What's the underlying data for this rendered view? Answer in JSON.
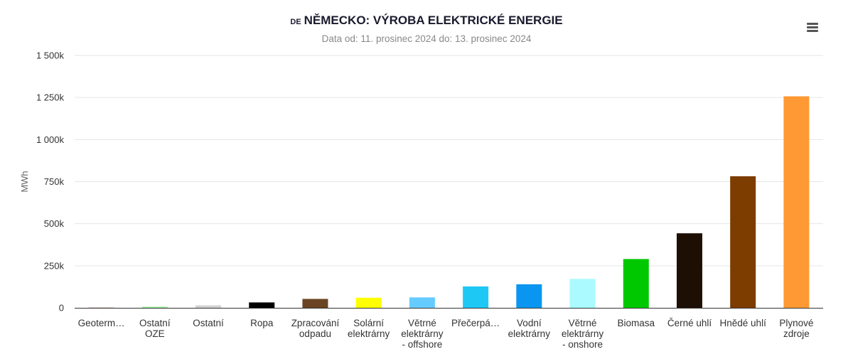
{
  "header": {
    "country_code": "DE",
    "title": "NĚMECKO: VÝROBA ELEKTRICKÉ ENERGIE",
    "subtitle": "Data od: 11. prosinec 2024 do: 13. prosinec 2024"
  },
  "menu": {
    "icon": "hamburger-menu-icon"
  },
  "chart_data": {
    "type": "bar",
    "title": "NĚMECKO: VÝROBA ELEKTRICKÉ ENERGIE",
    "subtitle": "Data od: 11. prosinec 2024 do: 13. prosinec 2024",
    "xlabel": "",
    "ylabel": "MWh",
    "ylim": [
      0,
      1500000
    ],
    "yticks": [
      0,
      250000,
      500000,
      750000,
      1000000,
      1250000,
      1500000
    ],
    "ytick_labels": [
      "0",
      "250k",
      "500k",
      "750k",
      "1 000k",
      "1 250k",
      "1 500k"
    ],
    "grid": true,
    "categories": [
      "Geoterm…",
      "Ostatní OZE",
      "Ostatní",
      "Ropa",
      "Zpracování odpadu",
      "Solární elektrárny",
      "Větrné elektrárny - offshore",
      "Přečerpá…",
      "Vodní elektrárny",
      "Větrné elektrárny - onshore",
      "Biomasa",
      "Černé uhlí",
      "Hnědé uhlí",
      "Plynové zdroje"
    ],
    "category_lines": [
      [
        "Geoterm…"
      ],
      [
        "Ostatní",
        "OZE"
      ],
      [
        "Ostatní"
      ],
      [
        "Ropa"
      ],
      [
        "Zpracování",
        "odpadu"
      ],
      [
        "Solární",
        "elektrárny"
      ],
      [
        "Větrné",
        "elektrárny",
        "- offshore"
      ],
      [
        "Přečerpá…"
      ],
      [
        "Vodní",
        "elektrárny"
      ],
      [
        "Větrné",
        "elektrárny",
        "- onshore"
      ],
      [
        "Biomasa"
      ],
      [
        "Černé uhlí"
      ],
      [
        "Hnědé uhlí"
      ],
      [
        "Plynové",
        "zdroje"
      ]
    ],
    "values": [
      1000,
      6000,
      15000,
      32000,
      53000,
      60000,
      62000,
      127000,
      140000,
      172000,
      290000,
      443000,
      782000,
      1257000
    ],
    "colors": [
      "#8b4513",
      "#90ee90",
      "#d3d3d3",
      "#000000",
      "#6b4423",
      "#ffff00",
      "#66ccff",
      "#1ec8f5",
      "#0a96f0",
      "#aafaff",
      "#00c800",
      "#1e0f05",
      "#7d3c00",
      "#ff9933"
    ]
  }
}
